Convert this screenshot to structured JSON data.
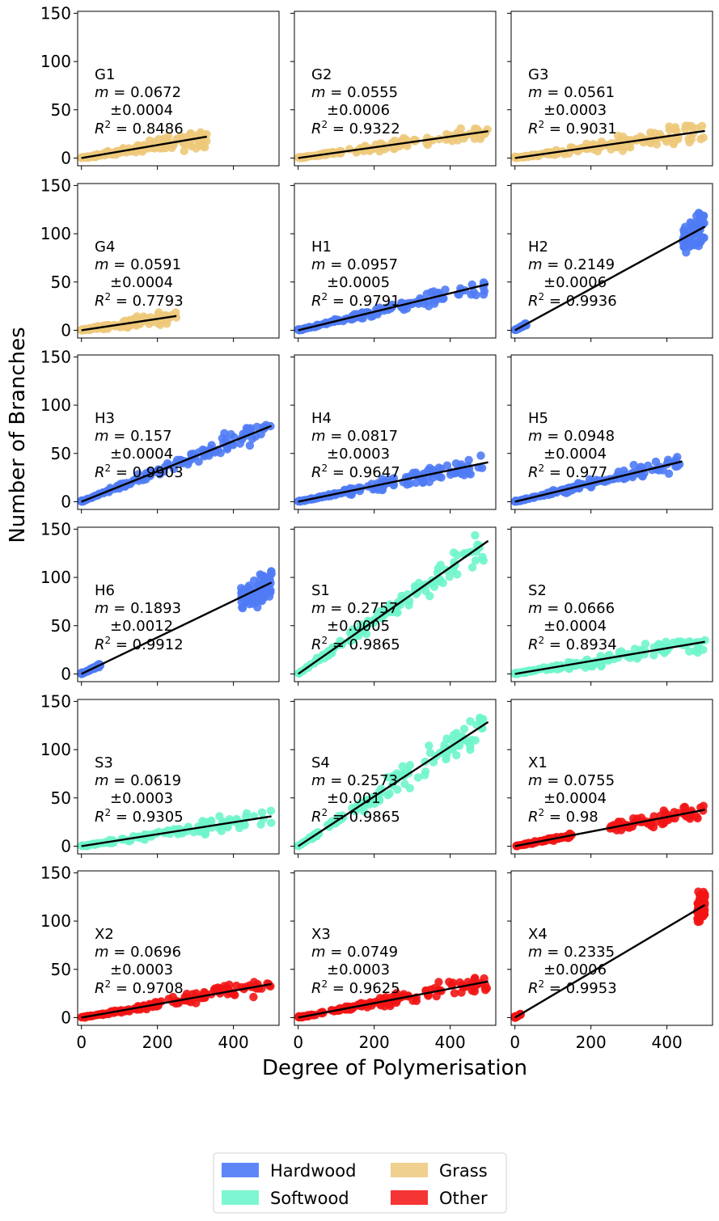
{
  "figure": {
    "xlabel": "Degree of Polymerisation",
    "ylabel": "Number of Branches"
  },
  "colors": {
    "Hardwood": "#4f7bf5",
    "Softwood": "#6ff5cc",
    "Grass": "#edc97a",
    "Other": "#f21414",
    "fit_line": "#000000"
  },
  "legend": {
    "placement": "bottom-center",
    "entries": [
      {
        "label": "Hardwood",
        "color": "#5f86f7"
      },
      {
        "label": "Grass",
        "color": "#f0d08f"
      },
      {
        "label": "Softwood",
        "color": "#7df7d2"
      },
      {
        "label": "Other",
        "color": "#f53434"
      }
    ]
  },
  "chart_data": {
    "type": "scatter",
    "layout_grid": "6x3",
    "xlim": [
      -10,
      520
    ],
    "ylim": [
      -8,
      152
    ],
    "xticks": [
      0,
      200,
      400
    ],
    "yticks": [
      0,
      50,
      100,
      150
    ],
    "panels": [
      {
        "name": "G1",
        "group": "Grass",
        "m": "0.0672",
        "err": "±0.0004",
        "r2": "0.8486",
        "x_max": 330,
        "slope": 0.0672,
        "y_max_obs": 27,
        "spread": 0.25
      },
      {
        "name": "G2",
        "group": "Grass",
        "m": "0.0555",
        "err": "±0.0006",
        "r2": "0.9322",
        "x_max": 500,
        "slope": 0.0555,
        "y_max_obs": 31,
        "spread": 0.18
      },
      {
        "name": "G3",
        "group": "Grass",
        "m": "0.0561",
        "err": "±0.0003",
        "r2": "0.9031",
        "x_max": 500,
        "slope": 0.0561,
        "y_max_obs": 35,
        "spread": 0.22
      },
      {
        "name": "G4",
        "group": "Grass",
        "m": "0.0591",
        "err": "±0.0004",
        "r2": "0.7793",
        "x_max": 250,
        "slope": 0.0591,
        "y_max_obs": 20,
        "spread": 0.3
      },
      {
        "name": "H1",
        "group": "Hardwood",
        "m": "0.0957",
        "err": "±0.0005",
        "r2": "0.9791",
        "x_max": 500,
        "slope": 0.0957,
        "y_max_obs": 50,
        "spread": 0.12
      },
      {
        "name": "H2",
        "group": "Hardwood",
        "m": "0.2149",
        "err": "±0.0006",
        "r2": "0.9936",
        "x_max": 500,
        "slope": 0.2149,
        "y_max_obs": 125,
        "spread": 0.08,
        "clusters": [
          [
            0,
            30
          ],
          [
            440,
            500
          ]
        ]
      },
      {
        "name": "H3",
        "group": "Hardwood",
        "m": "0.157",
        "err": "±0.0004",
        "r2": "0.9903",
        "x_max": 500,
        "slope": 0.157,
        "y_max_obs": 88,
        "spread": 0.08
      },
      {
        "name": "H4",
        "group": "Hardwood",
        "m": "0.0817",
        "err": "±0.0003",
        "r2": "0.9647",
        "x_max": 500,
        "slope": 0.0817,
        "y_max_obs": 50,
        "spread": 0.14
      },
      {
        "name": "H5",
        "group": "Hardwood",
        "m": "0.0948",
        "err": "±0.0004",
        "r2": "0.977",
        "x_max": 440,
        "slope": 0.0948,
        "y_max_obs": 48,
        "spread": 0.12
      },
      {
        "name": "H6",
        "group": "Hardwood",
        "m": "0.1893",
        "err": "±0.0012",
        "r2": "0.9912",
        "x_max": 500,
        "slope": 0.1893,
        "y_max_obs": 107,
        "spread": 0.08,
        "clusters": [
          [
            0,
            50
          ],
          [
            420,
            500
          ]
        ]
      },
      {
        "name": "S1",
        "group": "Softwood",
        "m": "0.2757",
        "err": "±0.0005",
        "r2": "0.9865",
        "x_max": 500,
        "slope": 0.2757,
        "y_max_obs": 145,
        "spread": 0.08
      },
      {
        "name": "S2",
        "group": "Softwood",
        "m": "0.0666",
        "err": "±0.0004",
        "r2": "0.8934",
        "x_max": 500,
        "slope": 0.0666,
        "y_max_obs": 35,
        "spread": 0.2
      },
      {
        "name": "S3",
        "group": "Softwood",
        "m": "0.0619",
        "err": "±0.0003",
        "r2": "0.9305",
        "x_max": 500,
        "slope": 0.0619,
        "y_max_obs": 39,
        "spread": 0.18
      },
      {
        "name": "S4",
        "group": "Softwood",
        "m": "0.2573",
        "err": "±0.001",
        "r2": "0.9865",
        "x_max": 500,
        "slope": 0.2573,
        "y_max_obs": 134,
        "spread": 0.08
      },
      {
        "name": "X1",
        "group": "Other",
        "m": "0.0755",
        "err": "±0.0004",
        "r2": "0.98",
        "x_max": 500,
        "slope": 0.0755,
        "y_max_obs": 45,
        "spread": 0.12,
        "clusters": [
          [
            0,
            150
          ],
          [
            250,
            500
          ]
        ]
      },
      {
        "name": "X2",
        "group": "Other",
        "m": "0.0696",
        "err": "±0.0003",
        "r2": "0.9708",
        "x_max": 500,
        "slope": 0.0696,
        "y_max_obs": 45,
        "spread": 0.14
      },
      {
        "name": "X3",
        "group": "Other",
        "m": "0.0749",
        "err": "±0.0003",
        "r2": "0.9625",
        "x_max": 500,
        "slope": 0.0749,
        "y_max_obs": 43,
        "spread": 0.14
      },
      {
        "name": "X4",
        "group": "Other",
        "m": "0.2335",
        "err": "±0.0006",
        "r2": "0.9953",
        "x_max": 500,
        "slope": 0.2335,
        "y_max_obs": 132,
        "spread": 0.06,
        "clusters": [
          [
            0,
            15
          ],
          [
            480,
            500
          ]
        ]
      }
    ]
  }
}
